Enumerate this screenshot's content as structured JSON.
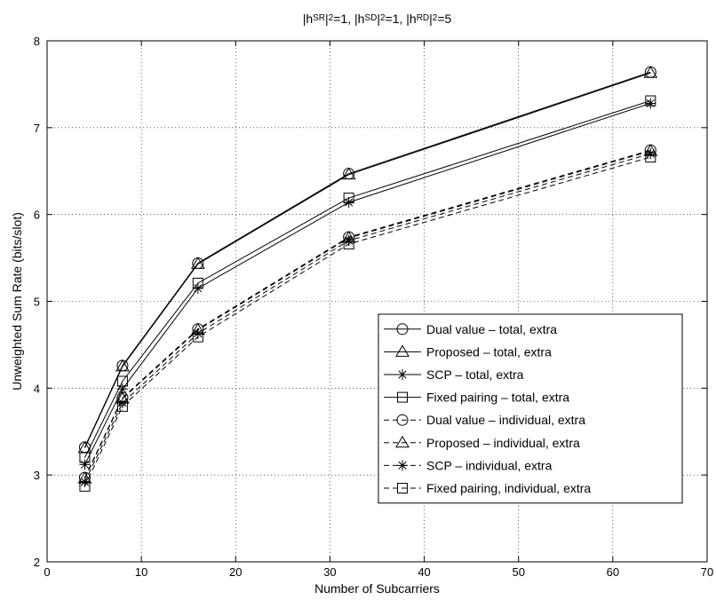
{
  "chart_data": {
    "type": "line",
    "title": {
      "parts": [
        {
          "t": "|h"
        },
        {
          "t": "SR",
          "sup": true
        },
        {
          "t": "|"
        },
        {
          "t": "2",
          "sup": true
        },
        {
          "t": "=1, |h"
        },
        {
          "t": "SD",
          "sup": true
        },
        {
          "t": "|"
        },
        {
          "t": "2",
          "sup": true
        },
        {
          "t": "=1, |h"
        },
        {
          "t": "RD",
          "sup": true
        },
        {
          "t": "|"
        },
        {
          "t": "2",
          "sup": true
        },
        {
          "t": "=5"
        }
      ]
    },
    "xlabel": "Number of Subcarriers",
    "ylabel": "Unweighted Sum Rate  (bits/slot)",
    "xlim": [
      0,
      70
    ],
    "ylim": [
      2,
      8
    ],
    "xticks": [
      0,
      10,
      20,
      30,
      40,
      50,
      60,
      70
    ],
    "yticks": [
      2,
      3,
      4,
      5,
      6,
      7,
      8
    ],
    "grid": true,
    "legend_position": "lower-right",
    "x": [
      4,
      8,
      16,
      32,
      64
    ],
    "series": [
      {
        "name": "Dual value – total, extra",
        "marker": "circle",
        "dash": "solid",
        "values": [
          3.32,
          4.26,
          5.44,
          6.47,
          7.64
        ]
      },
      {
        "name": "Proposed – total, extra",
        "marker": "triangle",
        "dash": "solid",
        "values": [
          3.31,
          4.25,
          5.43,
          6.46,
          7.63
        ]
      },
      {
        "name": "SCP – total, extra",
        "marker": "star",
        "dash": "solid",
        "values": [
          3.12,
          3.99,
          5.15,
          6.14,
          7.28
        ]
      },
      {
        "name": "Fixed pairing – total, extra",
        "marker": "square",
        "dash": "solid",
        "values": [
          3.2,
          4.08,
          5.21,
          6.19,
          7.31
        ]
      },
      {
        "name": "Dual value – individual, extra",
        "marker": "circle",
        "dash": "dashed",
        "values": [
          2.97,
          3.89,
          4.68,
          5.74,
          6.74
        ]
      },
      {
        "name": "Proposed – individual, extra",
        "marker": "triangle",
        "dash": "dashed",
        "values": [
          2.96,
          3.88,
          4.67,
          5.73,
          6.73
        ]
      },
      {
        "name": "SCP – individual, extra",
        "marker": "star",
        "dash": "dashed",
        "values": [
          2.92,
          3.83,
          4.63,
          5.7,
          6.7
        ]
      },
      {
        "name": "Fixed pairing, individual, extra",
        "marker": "square",
        "dash": "dashed",
        "values": [
          2.87,
          3.79,
          4.59,
          5.66,
          6.66
        ]
      }
    ]
  }
}
